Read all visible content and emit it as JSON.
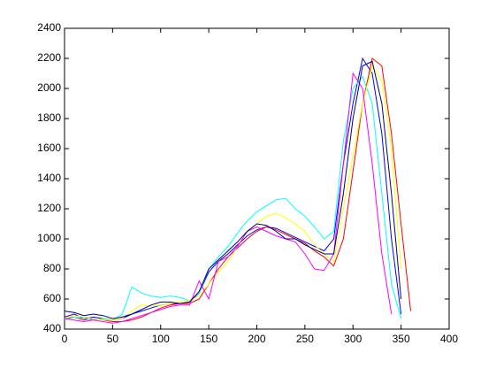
{
  "chart_data": {
    "type": "line",
    "x": [
      0,
      10,
      20,
      30,
      40,
      50,
      60,
      70,
      80,
      90,
      100,
      110,
      120,
      130,
      140,
      150,
      160,
      170,
      180,
      190,
      200,
      210,
      220,
      230,
      240,
      250,
      260,
      270,
      280,
      290,
      300,
      310,
      320,
      330,
      340,
      350,
      360
    ],
    "xlim": [
      0,
      400
    ],
    "xticks": [
      0,
      50,
      100,
      150,
      200,
      250,
      300,
      350,
      400
    ],
    "ylim": [
      400,
      2400
    ],
    "yticks": [
      400,
      600,
      800,
      1000,
      1200,
      1400,
      1600,
      1800,
      2000,
      2200,
      2400
    ],
    "series": [
      {
        "color": "#0000ff",
        "values": [
          480,
          500,
          470,
          480,
          470,
          460,
          470,
          500,
          520,
          540,
          560,
          570,
          570,
          580,
          640,
          780,
          850,
          900,
          960,
          1020,
          1060,
          1080,
          1070,
          1040,
          1010,
          980,
          950,
          920,
          1000,
          1500,
          1900,
          2200,
          2100,
          1700,
          1000,
          500,
          null
        ]
      },
      {
        "color": "#ff0000",
        "values": [
          470,
          480,
          460,
          470,
          460,
          450,
          450,
          460,
          480,
          510,
          540,
          560,
          570,
          570,
          600,
          700,
          800,
          880,
          940,
          1000,
          1050,
          1080,
          1060,
          1030,
          1000,
          970,
          920,
          880,
          820,
          1000,
          1450,
          1900,
          2200,
          2150,
          1700,
          1100,
          520
        ]
      },
      {
        "color": "#00ffff",
        "values": [
          460,
          480,
          470,
          460,
          470,
          460,
          500,
          680,
          640,
          620,
          610,
          620,
          610,
          590,
          640,
          800,
          880,
          950,
          1040,
          1120,
          1180,
          1220,
          1260,
          1270,
          1200,
          1150,
          1080,
          1000,
          1050,
          1650,
          2000,
          2080,
          1900,
          1300,
          700,
          470,
          null
        ]
      },
      {
        "color": "#ffff00",
        "values": [
          470,
          490,
          480,
          470,
          460,
          460,
          470,
          520,
          560,
          550,
          560,
          570,
          580,
          590,
          620,
          700,
          780,
          850,
          950,
          1050,
          1100,
          1150,
          1170,
          1140,
          1100,
          1050,
          960,
          900,
          850,
          1200,
          1550,
          1900,
          2150,
          2050,
          1600,
          800,
          null
        ]
      },
      {
        "color": "#ff00ff",
        "values": [
          470,
          460,
          450,
          460,
          450,
          440,
          450,
          470,
          490,
          510,
          530,
          550,
          560,
          560,
          720,
          600,
          850,
          880,
          950,
          1050,
          1080,
          1050,
          1020,
          1000,
          980,
          900,
          800,
          790,
          900,
          1500,
          2100,
          2000,
          1500,
          900,
          500,
          null,
          null
        ]
      },
      {
        "color": "#000080",
        "values": [
          520,
          510,
          490,
          500,
          490,
          470,
          480,
          500,
          530,
          560,
          580,
          580,
          570,
          580,
          650,
          800,
          860,
          920,
          980,
          1050,
          1100,
          1090,
          1050,
          1000,
          1000,
          960,
          930,
          900,
          900,
          1300,
          1800,
          2150,
          2180,
          1900,
          1300,
          600,
          null
        ]
      }
    ]
  }
}
